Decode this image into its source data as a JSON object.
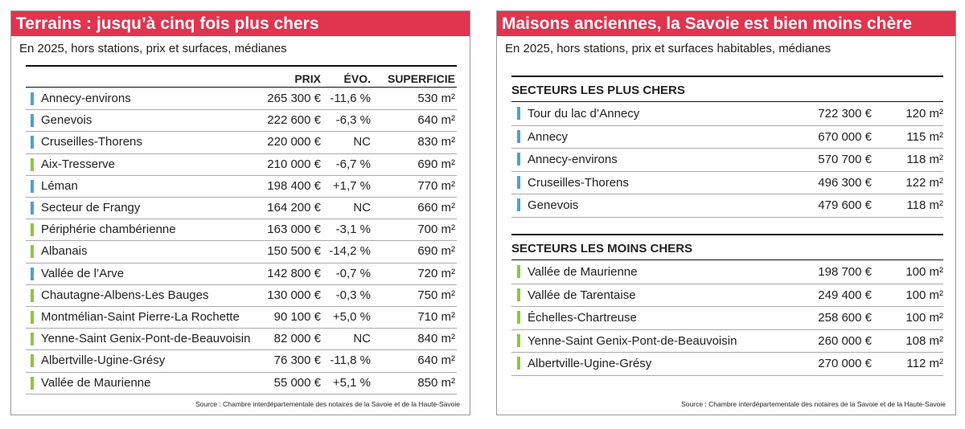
{
  "left": {
    "title": "Terrains : jusqu’à cinq fois plus chers",
    "subtitle": "En 2025, hors stations, prix et surfaces, médianes",
    "columns": [
      "PRIX",
      "ÉVO.",
      "SUPERFICIE"
    ],
    "rows": [
      {
        "name": "Annecy-environs",
        "price": "265 300 €",
        "evo": "-11,6 %",
        "area": "530 m²",
        "color": "#4aa3d0"
      },
      {
        "name": "Genevois",
        "price": "222 600 €",
        "evo": "-6,3 %",
        "area": "640 m²",
        "color": "#4aa3d0"
      },
      {
        "name": "Cruseilles-Thorens",
        "price": "220 000 €",
        "evo": "NC",
        "area": "830 m²",
        "color": "#4aa3d0"
      },
      {
        "name": "Aix-Tresserve",
        "price": "210 000 €",
        "evo": "-6,7 %",
        "area": "690 m²",
        "color": "#8dc63f"
      },
      {
        "name": "Léman",
        "price": "198 400 €",
        "evo": "+1,7 %",
        "area": "770 m²",
        "color": "#4aa3d0"
      },
      {
        "name": "Secteur de Frangy",
        "price": "164 200 €",
        "evo": "NC",
        "area": "660 m²",
        "color": "#4aa3d0"
      },
      {
        "name": "Périphérie chambérienne",
        "price": "163 000 €",
        "evo": "-3,1 %",
        "area": "700 m²",
        "color": "#8dc63f"
      },
      {
        "name": "Albanais",
        "price": "150 500 €",
        "evo": "-14,2 %",
        "area": "690 m²",
        "color": "#8dc63f"
      },
      {
        "name": "Vallée de l’Arve",
        "price": "142 800 €",
        "evo": "-0,7 %",
        "area": "720 m²",
        "color": "#4aa3d0"
      },
      {
        "name": "Chautagne-Albens-Les Bauges",
        "price": "130 000 €",
        "evo": "-0,3 %",
        "area": "750 m²",
        "color": "#8dc63f"
      },
      {
        "name": "Montmélian-Saint Pierre-La Rochette",
        "price": "90 100 €",
        "evo": "+5,0 %",
        "area": "710 m²",
        "color": "#8dc63f"
      },
      {
        "name": "Yenne-Saint Genix-Pont-de-Beauvoisin",
        "price": "82 000 €",
        "evo": "NC",
        "area": "840 m²",
        "color": "#8dc63f"
      },
      {
        "name": "Albertville-Ugine-Grésy",
        "price": "76 300 €",
        "evo": "-11,8 %",
        "area": "640 m²",
        "color": "#8dc63f"
      },
      {
        "name": "Vallée de Maurienne",
        "price": "55 000 €",
        "evo": "+5,1 %",
        "area": "850 m²",
        "color": "#8dc63f"
      }
    ],
    "source": "Source : Chambre interdépartementale des notaires de la Savoie et de la Haute-Savoie"
  },
  "right": {
    "title": "Maisons anciennes, la Savoie est bien moins chère",
    "subtitle": "En 2025, hors stations, prix et surfaces habitables, médianes",
    "sections": [
      {
        "heading": "SECTEURS LES PLUS CHERS",
        "rows": [
          {
            "name": "Tour du lac d’Annecy",
            "price": "722 300 €",
            "area": "120 m²",
            "color": "#4aa3d0"
          },
          {
            "name": "Annecy",
            "price": "670 000 €",
            "area": "115 m²",
            "color": "#4aa3d0"
          },
          {
            "name": "Annecy-environs",
            "price": "570 700 €",
            "area": "118 m²",
            "color": "#4aa3d0"
          },
          {
            "name": "Cruseilles-Thorens",
            "price": "496 300 €",
            "area": "122 m²",
            "color": "#4aa3d0"
          },
          {
            "name": "Genevois",
            "price": "479 600 €",
            "area": "118 m²",
            "color": "#4aa3d0"
          }
        ]
      },
      {
        "heading": "SECTEURS LES MOINS CHERS",
        "rows": [
          {
            "name": "Vallée de Maurienne",
            "price": "198 700 €",
            "area": "100 m²",
            "color": "#8dc63f"
          },
          {
            "name": "Vallée de Tarentaise",
            "price": "249 400 €",
            "area": "100 m²",
            "color": "#8dc63f"
          },
          {
            "name": "Échelles-Chartreuse",
            "price": "258 600 €",
            "area": "100 m²",
            "color": "#8dc63f"
          },
          {
            "name": "Yenne-Saint Genix-Pont-de-Beauvoisin",
            "price": "260 000 €",
            "area": "108 m²",
            "color": "#8dc63f"
          },
          {
            "name": "Albertville-Ugine-Grésy",
            "price": "270 000 €",
            "area": "112 m²",
            "color": "#8dc63f"
          }
        ]
      }
    ],
    "source": "Source : Chambre interdépartementale des notaires de la Savoie et de la Haute-Savoie"
  }
}
